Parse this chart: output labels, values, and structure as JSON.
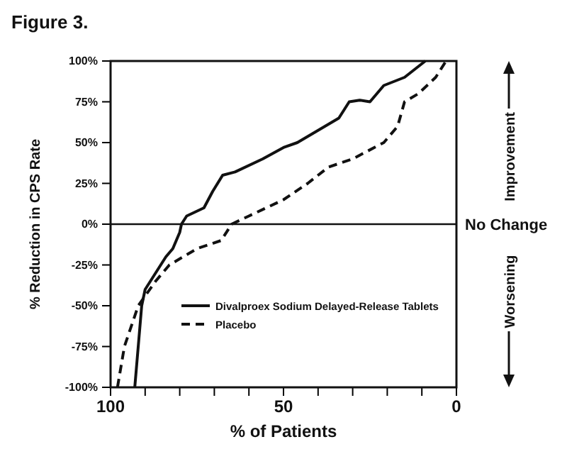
{
  "chart_data": {
    "type": "line",
    "title": "Figure 3.",
    "xlabel": "% of Patients",
    "ylabel": "% Reduction in CPS Rate",
    "xlim": [
      100,
      0
    ],
    "xticks": [
      100,
      {
        "value": 90,
        "label": null
      },
      {
        "value": 80,
        "label": null
      },
      {
        "value": 70,
        "label": null
      },
      {
        "value": 60,
        "label": null
      },
      50,
      {
        "value": 40,
        "label": null
      },
      {
        "value": 30,
        "label": null
      },
      {
        "value": 20,
        "label": null
      },
      {
        "value": 10,
        "label": null
      },
      0
    ],
    "ylim": [
      -100,
      100
    ],
    "yticks": [
      {
        "value": -100,
        "label": "-100%"
      },
      {
        "value": -75,
        "label": "-75%"
      },
      {
        "value": -50,
        "label": "-50%"
      },
      {
        "value": -25,
        "label": "-25%"
      },
      {
        "value": 0,
        "label": "0%"
      },
      {
        "value": 25,
        "label": "25%"
      },
      {
        "value": 50,
        "label": "50%"
      },
      {
        "value": 75,
        "label": "75%"
      },
      {
        "value": 100,
        "label": "100%"
      }
    ],
    "series": [
      {
        "name": "Divalproex Sodium Delayed-Release Tablets",
        "color": "#111111",
        "line_style": "solid",
        "x": [
          93,
          91,
          90,
          87,
          84,
          82,
          80,
          79.5,
          78,
          73,
          70.5,
          67.6,
          64,
          56,
          50,
          46,
          38,
          34,
          31,
          28,
          25,
          21,
          15,
          9
        ],
        "values": [
          -100,
          -50,
          -40,
          -30,
          -20,
          -15,
          -5,
          0,
          5,
          10,
          20,
          30,
          32,
          40,
          47,
          50,
          60,
          65,
          75,
          76,
          75,
          85,
          90,
          100
        ]
      },
      {
        "name": "Placebo",
        "color": "#111111",
        "line_style": "dashed",
        "x": [
          98,
          96,
          92,
          87,
          83,
          75,
          68,
          65,
          60,
          50,
          43,
          37,
          30,
          21,
          17,
          15,
          11,
          6,
          3
        ],
        "values": [
          -100,
          -75,
          -50,
          -35,
          -25,
          -15,
          -10,
          0,
          5,
          15,
          25,
          35,
          40,
          50,
          60,
          75,
          80,
          90,
          100
        ]
      }
    ],
    "ref_lines": [
      {
        "axis": "y",
        "value": 0,
        "label": "No Change",
        "color": "#111111"
      }
    ],
    "annotations": [
      "Improvement",
      "Worsening"
    ],
    "legend": "bottom right",
    "grid": false
  }
}
